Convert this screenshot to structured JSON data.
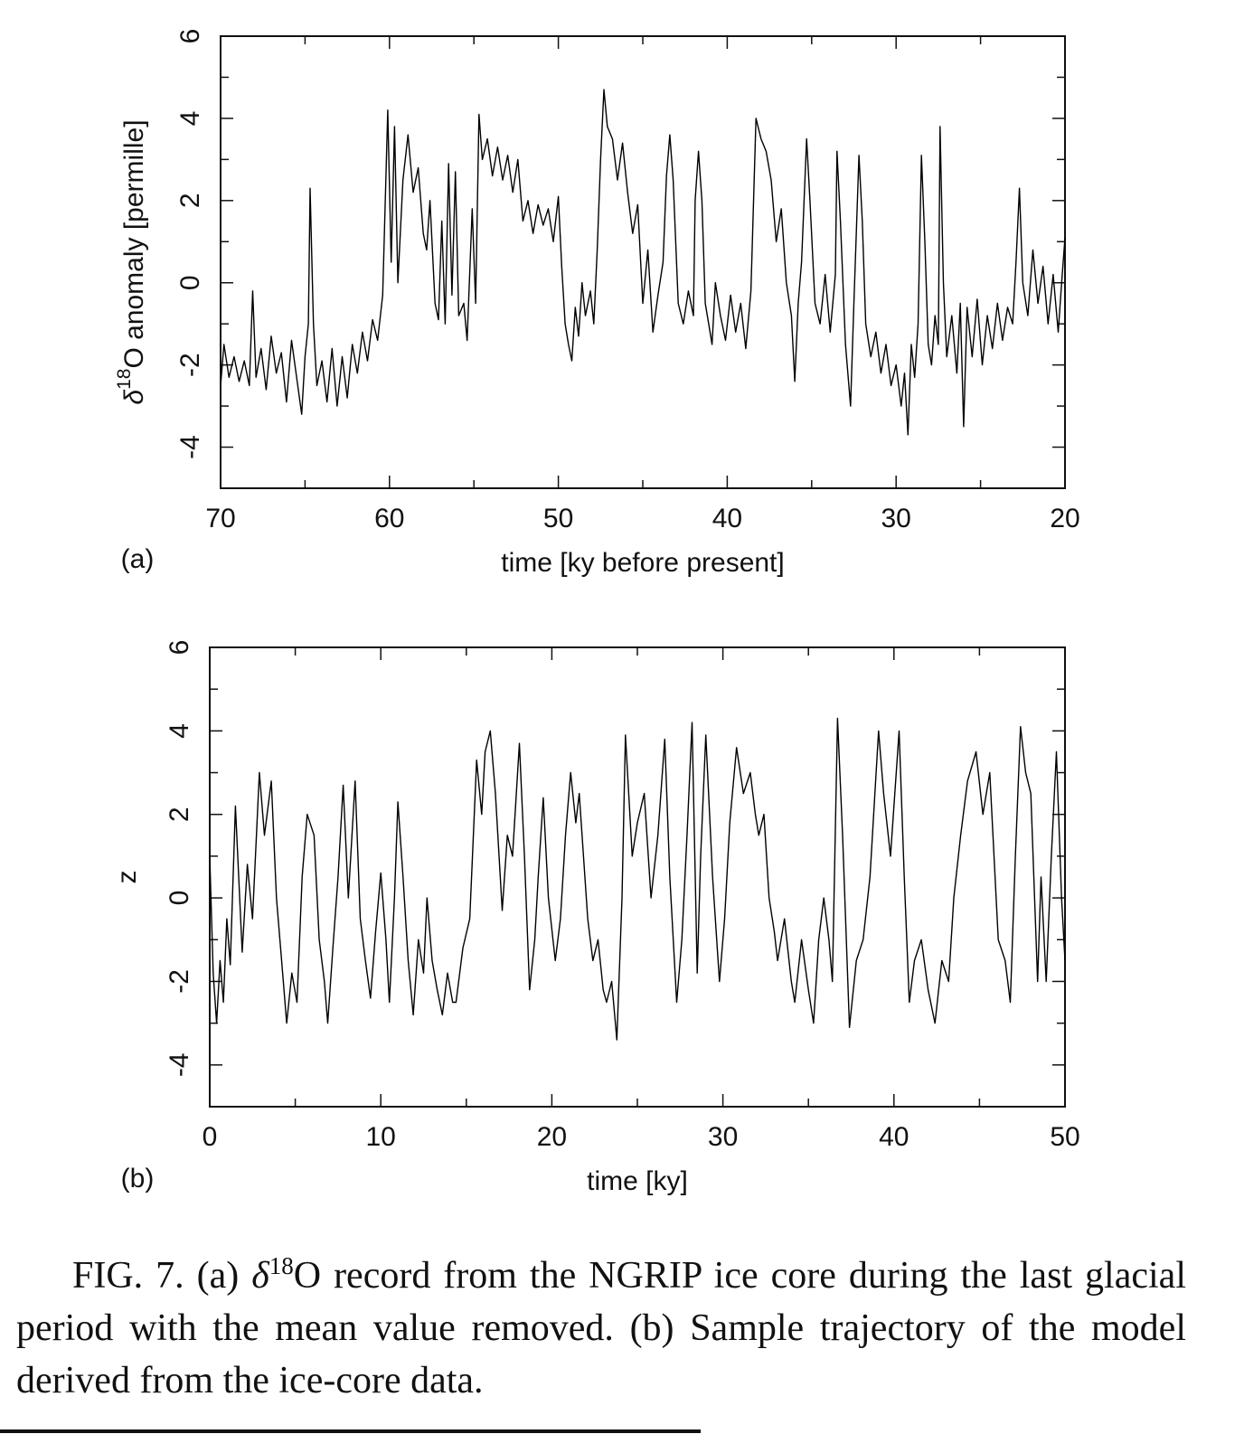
{
  "chart_data": [
    {
      "type": "line",
      "label": "(a)",
      "xlabel": "time [ky before present]",
      "ylabel": [
        "δ",
        "18",
        "O anomaly [permille]"
      ],
      "color": "#000000",
      "xlim": [
        70,
        20
      ],
      "xticks": [
        70,
        60,
        50,
        40,
        30,
        20
      ],
      "xminor": [
        65,
        55,
        45,
        35,
        25
      ],
      "ylim": [
        -5,
        6
      ],
      "yticks": [
        6,
        4,
        2,
        0,
        -2,
        -4
      ],
      "yminor": [
        5,
        3,
        1,
        -1,
        -3
      ],
      "x": [
        70,
        69.8,
        69.5,
        69.2,
        68.9,
        68.6,
        68.3,
        68.1,
        67.9,
        67.6,
        67.3,
        67.0,
        66.7,
        66.4,
        66.1,
        65.8,
        65.5,
        65.2,
        65.0,
        64.8,
        64.7,
        64.5,
        64.3,
        64.0,
        63.7,
        63.4,
        63.1,
        62.8,
        62.5,
        62.2,
        61.9,
        61.6,
        61.3,
        61.0,
        60.7,
        60.4,
        60.1,
        59.9,
        59.7,
        59.5,
        59.2,
        58.9,
        58.6,
        58.3,
        58.0,
        57.8,
        57.6,
        57.3,
        57.1,
        56.9,
        56.7,
        56.5,
        56.3,
        56.1,
        55.9,
        55.6,
        55.4,
        55.1,
        54.9,
        54.7,
        54.5,
        54.2,
        53.9,
        53.6,
        53.3,
        53.0,
        52.7,
        52.4,
        52.1,
        51.8,
        51.5,
        51.2,
        50.9,
        50.6,
        50.3,
        50.0,
        49.8,
        49.6,
        49.4,
        49.2,
        49.0,
        48.8,
        48.6,
        48.4,
        48.1,
        47.9,
        47.7,
        47.5,
        47.3,
        47.1,
        46.8,
        46.5,
        46.2,
        45.9,
        45.6,
        45.3,
        45.0,
        44.7,
        44.4,
        44.1,
        43.8,
        43.6,
        43.4,
        43.2,
        42.9,
        42.6,
        42.3,
        42.0,
        41.9,
        41.7,
        41.5,
        41.3,
        41.1,
        40.9,
        40.7,
        40.4,
        40.1,
        39.8,
        39.5,
        39.2,
        38.9,
        38.6,
        38.3,
        38.0,
        37.7,
        37.4,
        37.1,
        36.8,
        36.5,
        36.2,
        36.0,
        35.8,
        35.6,
        35.3,
        35.1,
        34.8,
        34.5,
        34.2,
        33.9,
        33.6,
        33.5,
        33.3,
        33.0,
        32.7,
        32.5,
        32.2,
        32.0,
        31.8,
        31.5,
        31.2,
        30.9,
        30.6,
        30.3,
        30.0,
        29.7,
        29.5,
        29.3,
        29.1,
        28.9,
        28.7,
        28.5,
        28.3,
        28.1,
        27.9,
        27.7,
        27.5,
        27.4,
        27.2,
        27.0,
        26.7,
        26.4,
        26.2,
        26.0,
        25.8,
        25.5,
        25.2,
        24.9,
        24.6,
        24.3,
        24.0,
        23.7,
        23.4,
        23.1,
        22.9,
        22.7,
        22.5,
        22.2,
        21.9,
        21.6,
        21.3,
        21.0,
        20.7,
        20.4,
        20.2,
        20.0
      ],
      "values": [
        -2.5,
        -1.5,
        -2.3,
        -1.8,
        -2.4,
        -1.9,
        -2.5,
        -0.2,
        -2.3,
        -1.6,
        -2.6,
        -1.3,
        -2.2,
        -1.7,
        -2.9,
        -1.4,
        -2.3,
        -3.2,
        -1.8,
        -1.0,
        2.3,
        -1.0,
        -2.5,
        -1.9,
        -2.9,
        -1.6,
        -3.0,
        -1.8,
        -2.8,
        -1.5,
        -2.2,
        -1.2,
        -1.9,
        -0.9,
        -1.4,
        -0.3,
        4.2,
        0.5,
        3.8,
        0.0,
        2.5,
        3.6,
        2.2,
        2.8,
        1.2,
        0.8,
        2.0,
        -0.5,
        -0.9,
        1.5,
        -1.0,
        2.9,
        -0.3,
        2.7,
        -0.8,
        -0.5,
        -1.4,
        1.8,
        -0.5,
        4.1,
        3.0,
        3.5,
        2.6,
        3.3,
        2.5,
        3.1,
        2.2,
        3.0,
        1.5,
        2.0,
        1.2,
        1.9,
        1.4,
        1.8,
        1.0,
        2.1,
        0.4,
        -1.0,
        -1.5,
        -1.9,
        -0.6,
        -1.3,
        0.0,
        -0.8,
        -0.2,
        -1.0,
        0.8,
        3.0,
        4.7,
        3.8,
        3.5,
        2.5,
        3.4,
        2.2,
        1.2,
        1.9,
        -0.5,
        0.8,
        -1.2,
        -0.3,
        0.5,
        2.6,
        3.6,
        2.5,
        -0.5,
        -1.0,
        -0.2,
        -0.8,
        2.0,
        3.2,
        2.0,
        -0.5,
        -1.0,
        -1.5,
        0.0,
        -0.8,
        -1.4,
        -0.3,
        -1.2,
        -0.5,
        -1.6,
        -0.2,
        4.0,
        3.5,
        3.2,
        2.5,
        1.0,
        1.8,
        0.0,
        -0.8,
        -2.4,
        -0.5,
        0.5,
        3.5,
        2.0,
        -0.5,
        -1.0,
        0.2,
        -1.2,
        0.2,
        3.2,
        1.5,
        -1.5,
        -3.0,
        -0.5,
        3.1,
        1.5,
        -1.0,
        -1.8,
        -1.2,
        -2.2,
        -1.5,
        -2.5,
        -2.0,
        -3.0,
        -2.2,
        -3.7,
        -1.5,
        -2.3,
        -1.0,
        3.1,
        1.0,
        -1.5,
        -2.0,
        -0.8,
        -1.5,
        3.8,
        0.0,
        -1.8,
        -0.8,
        -2.2,
        -0.5,
        -3.5,
        -0.6,
        -1.8,
        -0.4,
        -2.0,
        -0.8,
        -1.6,
        -0.5,
        -1.4,
        -0.6,
        -1.0,
        0.5,
        2.3,
        0.0,
        -0.8,
        0.8,
        -0.5,
        0.4,
        -1.0,
        0.2,
        -1.2,
        0.0,
        1.1
      ]
    },
    {
      "type": "line",
      "label": "(b)",
      "xlabel": "time [ky]",
      "ylabel": [
        "z"
      ],
      "color": "#000000",
      "xlim": [
        0,
        50
      ],
      "xticks": [
        0,
        10,
        20,
        30,
        40,
        50
      ],
      "xminor": [
        5,
        15,
        25,
        35,
        45
      ],
      "ylim": [
        -5,
        6
      ],
      "yticks": [
        6,
        4,
        2,
        0,
        -2,
        -4
      ],
      "yminor": [
        5,
        3,
        1,
        -1,
        -3
      ],
      "x": [
        0,
        0.2,
        0.4,
        0.6,
        0.8,
        1.0,
        1.2,
        1.5,
        1.9,
        2.2,
        2.5,
        2.9,
        3.2,
        3.6,
        3.9,
        4.2,
        4.5,
        4.8,
        5.1,
        5.4,
        5.7,
        6.1,
        6.4,
        6.7,
        6.9,
        7.2,
        7.5,
        7.8,
        8.1,
        8.5,
        8.8,
        9.1,
        9.4,
        9.7,
        10.0,
        10.3,
        10.5,
        10.8,
        11.0,
        11.3,
        11.6,
        11.9,
        12.2,
        12.5,
        12.7,
        13.0,
        13.3,
        13.6,
        13.9,
        14.2,
        14.4,
        14.8,
        15.2,
        15.6,
        15.9,
        16.1,
        16.4,
        16.7,
        17.1,
        17.4,
        17.7,
        18.1,
        18.4,
        18.7,
        19.0,
        19.2,
        19.5,
        19.8,
        20.2,
        20.5,
        20.8,
        21.1,
        21.4,
        21.6,
        22.1,
        22.4,
        22.7,
        23.0,
        23.2,
        23.5,
        23.8,
        24.1,
        24.3,
        24.7,
        25.0,
        25.4,
        25.8,
        26.2,
        26.6,
        26.9,
        27.3,
        27.6,
        27.9,
        28.2,
        28.5,
        28.7,
        29.0,
        29.4,
        29.8,
        30.1,
        30.4,
        30.8,
        31.2,
        31.6,
        31.9,
        32.1,
        32.4,
        32.7,
        33.0,
        33.2,
        33.6,
        34.0,
        34.2,
        34.6,
        35.0,
        35.3,
        35.6,
        35.9,
        36.2,
        36.4,
        36.7,
        37.0,
        37.4,
        37.8,
        38.2,
        38.6,
        39.1,
        39.4,
        39.8,
        40.3,
        40.6,
        40.9,
        41.2,
        41.6,
        42.0,
        42.4,
        42.8,
        43.2,
        43.5,
        43.9,
        44.3,
        44.8,
        45.2,
        45.6,
        46.1,
        46.5,
        46.8,
        47.1,
        47.4,
        47.7,
        48.0,
        48.4,
        48.6,
        48.9,
        49.2,
        49.5,
        49.8,
        50.0
      ],
      "values": [
        1.0,
        -1.8,
        -3.0,
        -1.5,
        -2.5,
        -0.5,
        -1.6,
        2.2,
        -1.3,
        0.8,
        -0.5,
        3.0,
        1.5,
        2.8,
        0.0,
        -1.5,
        -3.0,
        -1.8,
        -2.5,
        0.5,
        2.0,
        1.5,
        -1.0,
        -2.0,
        -3.0,
        -1.2,
        0.5,
        2.7,
        0.0,
        2.8,
        -0.5,
        -1.5,
        -2.4,
        -0.8,
        0.6,
        -1.0,
        -2.5,
        0.0,
        2.3,
        0.5,
        -1.5,
        -2.8,
        -1.0,
        -1.8,
        0.0,
        -1.5,
        -2.2,
        -2.8,
        -1.8,
        -2.5,
        -2.5,
        -1.2,
        -0.5,
        3.3,
        2.0,
        3.5,
        4.0,
        2.5,
        -0.3,
        1.5,
        1.0,
        3.7,
        1.0,
        -2.2,
        -1.0,
        0.5,
        2.4,
        0.0,
        -1.5,
        -0.5,
        1.5,
        3.0,
        1.8,
        2.5,
        -0.5,
        -1.5,
        -1.0,
        -2.2,
        -2.5,
        -2.0,
        -3.4,
        0.0,
        3.9,
        1.0,
        1.8,
        2.5,
        0.0,
        1.5,
        3.8,
        0.5,
        -2.5,
        -1.0,
        1.5,
        4.2,
        -1.8,
        1.0,
        3.9,
        0.5,
        -2.0,
        -0.5,
        1.8,
        3.6,
        2.5,
        3.0,
        2.0,
        1.5,
        2.0,
        0.0,
        -0.8,
        -1.5,
        -0.5,
        -2.0,
        -2.5,
        -1.0,
        -2.2,
        -3.0,
        -1.0,
        0.0,
        -1.0,
        -2.0,
        4.3,
        1.5,
        -3.1,
        -1.5,
        -1.0,
        0.5,
        4.0,
        2.5,
        1.0,
        4.0,
        0.5,
        -2.5,
        -1.5,
        -1.0,
        -2.2,
        -3.0,
        -1.5,
        -2.0,
        0.0,
        1.5,
        2.8,
        3.5,
        2.0,
        3.0,
        -1.0,
        -1.5,
        -2.5,
        1.0,
        4.1,
        3.0,
        2.5,
        -2.0,
        0.5,
        -2.0,
        1.0,
        3.5,
        0.0,
        -1.5
      ]
    }
  ],
  "caption": [
    "FIG. 7. (a) ",
    "δ",
    "18",
    "O record from the NGRIP ice core during the last glacial period with the mean value removed. (b) Sample trajectory of the model derived from the ice-core data."
  ]
}
